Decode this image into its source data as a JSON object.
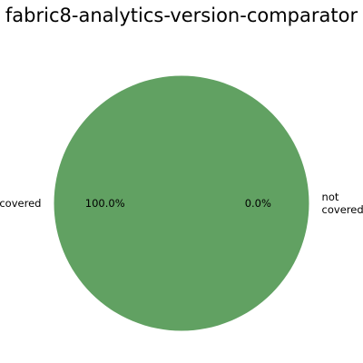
{
  "chart_data": {
    "type": "pie",
    "title": "fabric8-analytics-version-comparator",
    "slices": [
      {
        "label": "covered",
        "value": 100.0,
        "pct_label": "100.0%",
        "color": "#61a162"
      },
      {
        "label": "not covered",
        "label_lines": [
          "not",
          "covered"
        ],
        "value": 0.0,
        "pct_label": "0.0%",
        "color": "#d6635f"
      }
    ]
  }
}
